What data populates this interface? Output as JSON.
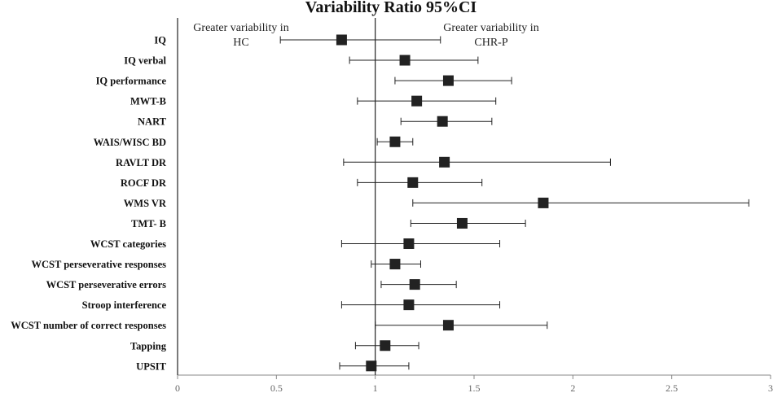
{
  "chart_data": {
    "type": "forest",
    "title": "Variability Ratio 95%CI",
    "reference_line": 1,
    "xlim": [
      0,
      3
    ],
    "xticks": [
      0,
      0.5,
      1,
      1.5,
      2,
      2.5,
      3
    ],
    "xtick_labels": [
      "0",
      "0.5",
      "1",
      "1.5",
      "2",
      "2.5",
      "3"
    ],
    "annotation_left": [
      "Greater variability in",
      "HC"
    ],
    "annotation_right": [
      "Greater variability in",
      "CHR-P"
    ],
    "rows": [
      {
        "label": "IQ",
        "estimate": 0.83,
        "lower": 0.52,
        "upper": 1.33
      },
      {
        "label": "IQ verbal",
        "estimate": 1.15,
        "lower": 0.87,
        "upper": 1.52
      },
      {
        "label": "IQ performance",
        "estimate": 1.37,
        "lower": 1.1,
        "upper": 1.69
      },
      {
        "label": "MWT-B",
        "estimate": 1.21,
        "lower": 0.91,
        "upper": 1.61
      },
      {
        "label": "NART",
        "estimate": 1.34,
        "lower": 1.13,
        "upper": 1.59
      },
      {
        "label": "WAIS/WISC BD",
        "estimate": 1.1,
        "lower": 1.01,
        "upper": 1.19
      },
      {
        "label": "RAVLT DR",
        "estimate": 1.35,
        "lower": 0.84,
        "upper": 2.19
      },
      {
        "label": "ROCF DR",
        "estimate": 1.19,
        "lower": 0.91,
        "upper": 1.54
      },
      {
        "label": "WMS VR",
        "estimate": 1.85,
        "lower": 1.19,
        "upper": 2.89
      },
      {
        "label": "TMT- B",
        "estimate": 1.44,
        "lower": 1.18,
        "upper": 1.76
      },
      {
        "label": "WCST categories",
        "estimate": 1.17,
        "lower": 0.83,
        "upper": 1.63
      },
      {
        "label": "WCST perseverative responses",
        "estimate": 1.1,
        "lower": 0.98,
        "upper": 1.23
      },
      {
        "label": "WCST perseverative errors",
        "estimate": 1.2,
        "lower": 1.03,
        "upper": 1.41
      },
      {
        "label": "Stroop interference",
        "estimate": 1.17,
        "lower": 0.83,
        "upper": 1.63
      },
      {
        "label": "WCST number of correct responses",
        "estimate": 1.37,
        "lower": 1.0,
        "upper": 1.87
      },
      {
        "label": "Tapping",
        "estimate": 1.05,
        "lower": 0.9,
        "upper": 1.22
      },
      {
        "label": "UPSIT",
        "estimate": 0.98,
        "lower": 0.82,
        "upper": 1.17
      }
    ]
  }
}
